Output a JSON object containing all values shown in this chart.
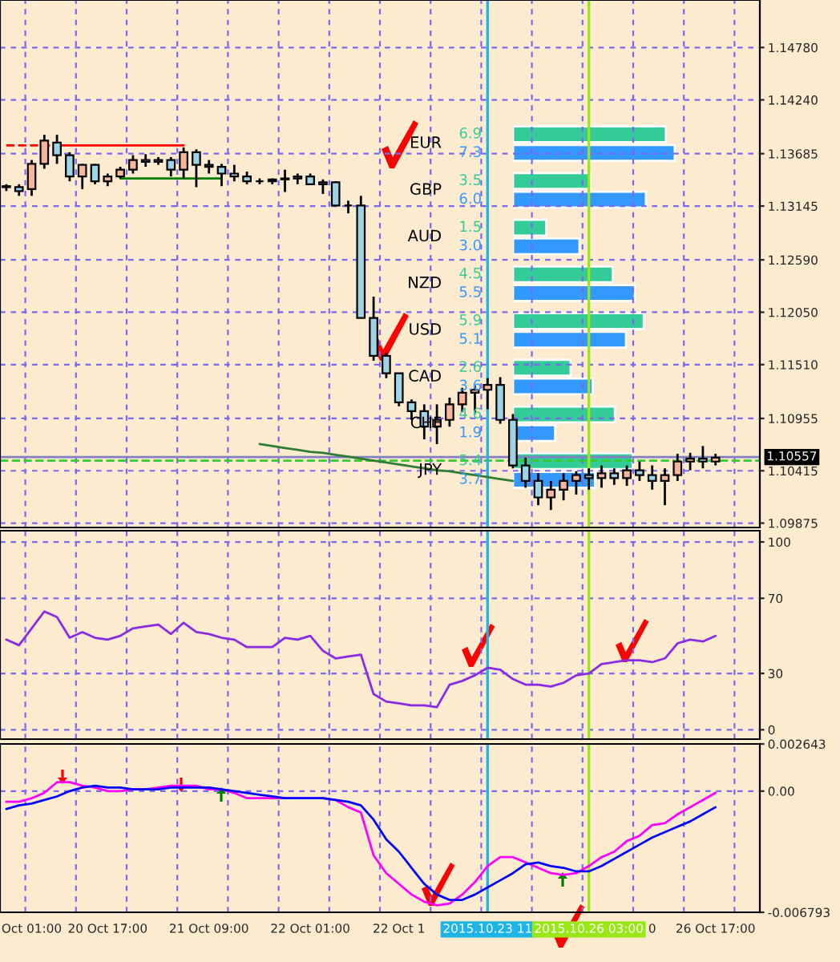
{
  "chart_data": [
    {
      "type": "candlestick",
      "categories": [
        null,
        null,
        "Oct 01:00",
        null,
        null,
        null,
        null,
        null,
        "20 Oct 17:00",
        null,
        null,
        null,
        null,
        null,
        null,
        null,
        "21 Oct 09:00",
        null,
        null,
        null,
        null,
        null,
        null,
        null,
        "22 Oct 01:00",
        null,
        null,
        null,
        null,
        null,
        null,
        "22 Oct 1",
        null,
        null,
        null,
        null,
        null,
        null,
        "2015.10.23 11",
        null,
        null,
        null,
        null,
        null,
        null,
        null,
        "2015.10.26 03:00",
        null,
        null,
        null,
        null,
        "0",
        null,
        null,
        null,
        null,
        "26 Oct 17:00",
        null,
        null,
        null
      ],
      "ohlc": [
        [
          1.1335,
          1.1337,
          1.133,
          1.1334
        ],
        [
          1.1334,
          1.1337,
          1.1325,
          1.133
        ],
        [
          1.1332,
          1.1362,
          1.1325,
          1.1358
        ],
        [
          1.1358,
          1.1388,
          1.1353,
          1.1382
        ],
        [
          1.138,
          1.1388,
          1.1358,
          1.1367
        ],
        [
          1.1367,
          1.137,
          1.134,
          1.1345
        ],
        [
          1.1345,
          1.1358,
          1.1332,
          1.1357
        ],
        [
          1.1357,
          1.1358,
          1.1337,
          1.134
        ],
        [
          1.134,
          1.1348,
          1.1335,
          1.1345
        ],
        [
          1.1345,
          1.1355,
          1.1343,
          1.1352
        ],
        [
          1.1352,
          1.1367,
          1.1348,
          1.1362
        ],
        [
          1.1362,
          1.1368,
          1.1355,
          1.136
        ],
        [
          1.136,
          1.1365,
          1.1357,
          1.1362
        ],
        [
          1.1362,
          1.1365,
          1.1345,
          1.1352
        ],
        [
          1.1352,
          1.1375,
          1.1343,
          1.137
        ],
        [
          1.137,
          1.1373,
          1.1334,
          1.1357
        ],
        [
          1.1357,
          1.1362,
          1.1348,
          1.1355
        ],
        [
          1.1355,
          1.1358,
          1.1335,
          1.1348
        ],
        [
          1.1348,
          1.1357,
          1.134,
          1.1345
        ],
        [
          1.1345,
          1.135,
          1.1337,
          1.134
        ],
        [
          1.134,
          1.1343,
          1.1337,
          1.134
        ],
        [
          1.134,
          1.1343,
          1.1337,
          1.1342
        ],
        [
          1.1342,
          1.1352,
          1.1329,
          1.1343
        ],
        [
          1.1343,
          1.1348,
          1.1337,
          1.1345
        ],
        [
          1.1345,
          1.1348,
          1.1337,
          1.1337
        ],
        [
          1.1337,
          1.1342,
          1.1327,
          1.1339
        ],
        [
          1.1339,
          1.134,
          1.1314,
          1.1315
        ],
        [
          1.1315,
          1.132,
          1.1307,
          1.1315
        ],
        [
          1.1315,
          1.1325,
          1.1199,
          1.1199
        ],
        [
          1.1199,
          1.1221,
          1.1155,
          1.116
        ],
        [
          1.116,
          1.1163,
          1.1137,
          1.1142
        ],
        [
          1.1142,
          1.1142,
          1.1108,
          1.1112
        ],
        [
          1.1112,
          1.1115,
          1.1094,
          1.1103
        ],
        [
          1.1103,
          1.111,
          1.1074,
          1.1087
        ],
        [
          1.1087,
          1.111,
          1.1069,
          1.1094
        ],
        [
          1.1094,
          1.1117,
          1.1087,
          1.111
        ],
        [
          1.111,
          1.1127,
          1.1102,
          1.1122
        ],
        [
          1.1122,
          1.113,
          1.11,
          1.1125
        ],
        [
          1.1125,
          1.1137,
          1.1105,
          1.113
        ],
        [
          1.113,
          1.1138,
          1.109,
          1.1094
        ],
        [
          1.1094,
          1.11,
          1.1044,
          1.1047
        ],
        [
          1.1047,
          1.1055,
          1.1024,
          1.1031
        ],
        [
          1.1031,
          1.1039,
          1.1006,
          1.1014
        ],
        [
          1.1014,
          1.1031,
          1.1001,
          1.1022
        ],
        [
          1.1022,
          1.1039,
          1.1011,
          1.1031
        ],
        [
          1.1031,
          1.1041,
          1.1017,
          1.1037
        ],
        [
          1.1037,
          1.1044,
          1.1022,
          1.1034
        ],
        [
          1.1034,
          1.1047,
          1.1024,
          1.1039
        ],
        [
          1.1039,
          1.1044,
          1.1027,
          1.1034
        ],
        [
          1.1034,
          1.1047,
          1.1026,
          1.1042
        ],
        [
          1.1042,
          1.1051,
          1.1031,
          1.1037
        ],
        [
          1.1037,
          1.1047,
          1.1022,
          1.1031
        ],
        [
          1.1031,
          1.1044,
          1.1006,
          1.1037
        ],
        [
          1.1037,
          1.1059,
          1.1031,
          1.1051
        ],
        [
          1.1051,
          1.106,
          1.1042,
          1.1054
        ],
        [
          1.1054,
          1.1067,
          1.1044,
          1.1051
        ],
        [
          1.1051,
          1.1059,
          1.1047,
          1.1055
        ],
        null,
        null,
        null
      ],
      "series": [
        {
          "type": "line",
          "color": "#ff0000",
          "line_style": "dashed",
          "values": [
            1.1377,
            1.1377,
            1.1377,
            1.1377,
            1.1377,
            null,
            null,
            null,
            null,
            null,
            null,
            null,
            null,
            null,
            null,
            null,
            null,
            null,
            null,
            null,
            null,
            null,
            null,
            null,
            null,
            null,
            null,
            null,
            null,
            null,
            null,
            null,
            null,
            null,
            null,
            null,
            null,
            null,
            null,
            null,
            null,
            null,
            null,
            null,
            null,
            null,
            null,
            null,
            null,
            null,
            null,
            null,
            null,
            null,
            null,
            null,
            null,
            null,
            null,
            null
          ]
        },
        {
          "type": "line",
          "color": "#ff0000",
          "line_style": "solid",
          "values": [
            null,
            null,
            null,
            null,
            1.1377,
            1.1377,
            1.1377,
            1.1377,
            1.1377,
            1.1377,
            1.1377,
            1.1377,
            1.1377,
            1.1377,
            1.1377,
            null,
            null,
            null,
            null,
            null,
            null,
            null,
            null,
            null,
            null,
            null,
            null,
            null,
            null,
            null,
            null,
            null,
            null,
            null,
            null,
            null,
            null,
            null,
            null,
            null,
            null,
            null,
            null,
            null,
            null,
            null,
            null,
            null,
            null,
            null,
            null,
            null,
            null,
            null,
            null,
            null,
            null,
            null,
            null,
            null
          ]
        },
        {
          "type": "line",
          "color": "#008000",
          "line_style": "solid",
          "values": [
            null,
            null,
            null,
            null,
            null,
            null,
            null,
            null,
            null,
            1.1343,
            1.1343,
            1.1343,
            1.1343,
            1.1343,
            1.1343,
            1.1343,
            1.1343,
            1.1343,
            null,
            null,
            null,
            null,
            null,
            null,
            null,
            null,
            null,
            null,
            null,
            null,
            null,
            null,
            null,
            null,
            null,
            null,
            null,
            null,
            null,
            null,
            null,
            null,
            null,
            null,
            null,
            null,
            null,
            null,
            null,
            null,
            null,
            null,
            null,
            null,
            null,
            null,
            null,
            null,
            null,
            null
          ]
        },
        {
          "type": "line",
          "color": "#2e7d32",
          "line_style": "solid",
          "values": [
            null,
            null,
            null,
            null,
            null,
            null,
            null,
            null,
            null,
            null,
            null,
            null,
            null,
            null,
            null,
            null,
            null,
            null,
            null,
            null,
            1.1069,
            1.1067,
            1.1065,
            1.1063,
            1.1061,
            1.106,
            1.1058,
            1.1056,
            1.1054,
            1.1052,
            1.105,
            1.1048,
            1.1046,
            1.1044,
            1.1042,
            1.1041,
            1.1039,
            1.1037,
            1.1035,
            1.1033,
            1.1031,
            null,
            null,
            null,
            null,
            null,
            null,
            null,
            null,
            null,
            null,
            null,
            null,
            null,
            null,
            null,
            null,
            null,
            null,
            null
          ]
        }
      ],
      "ylim": [
        1.0983,
        1.1527
      ],
      "yticks": [
        1.09875,
        1.10415,
        1.10955,
        {
          "value": 1.1151,
          "label": "1.11510"
        },
        {
          "value": 1.1205,
          "label": "1.12050"
        },
        {
          "value": 1.1259,
          "label": "1.12590"
        },
        1.13145,
        1.13685,
        {
          "value": 1.1424,
          "label": "1.14240"
        },
        {
          "value": 1.1478,
          "label": "1.14780"
        }
      ],
      "grid": true,
      "tick_labels": "y",
      "ref_lines": [
        {
          "axis": "y",
          "value": 1.10557,
          "label": "1.10557",
          "color": "#8080c0",
          "line_style": "solid"
        },
        {
          "axis": "y",
          "value": 1.1052,
          "color": "#33cc33",
          "line_style": "dashed"
        },
        {
          "axis": "x",
          "value": "2015.10.23 11",
          "color": "#1eb4e6"
        },
        {
          "axis": "x",
          "value": "2015.10.26 03:00",
          "color": "#99e619"
        }
      ]
    },
    {
      "type": "bar",
      "orientation": "horizontal",
      "categories": [
        "EUR",
        "GBP",
        "AUD",
        "NZD",
        "USD",
        "CAD",
        "CHF",
        "JPY"
      ],
      "series": [
        {
          "color": "#33cc99",
          "values": [
            6.9,
            3.5,
            1.5,
            4.5,
            5.9,
            2.6,
            4.6,
            5.4
          ],
          "value_labels": [
            "6.9",
            "3.5",
            "1.5",
            "4.5",
            "5.9",
            "2.6",
            "4.6",
            "5.4"
          ]
        },
        {
          "color": "#3399ff",
          "values": [
            7.3,
            6.0,
            3.0,
            5.5,
            5.1,
            3.6,
            1.9,
            3.7
          ],
          "value_labels": [
            "7.3",
            "6.0",
            "3.0",
            "5.5",
            "5.1",
            "3.6",
            "1.9",
            "3.7"
          ]
        }
      ]
    },
    {
      "type": "line",
      "categories": [
        null,
        null,
        "Oct 01:00",
        null,
        null,
        null,
        null,
        null,
        "20 Oct 17:00",
        null,
        null,
        null,
        null,
        null,
        null,
        null,
        "21 Oct 09:00",
        null,
        null,
        null,
        null,
        null,
        null,
        null,
        "22 Oct 01:00",
        null,
        null,
        null,
        null,
        null,
        null,
        "22 Oct 1",
        null,
        null,
        null,
        null,
        null,
        null,
        "2015.10.23 11",
        null,
        null,
        null,
        null,
        null,
        null,
        null,
        "2015.10.26 03:00",
        null,
        null,
        null,
        null,
        "0",
        null,
        null,
        null,
        null,
        "26 Oct 17:00",
        null,
        null,
        null
      ],
      "series": [
        {
          "color": "#8a2be2",
          "values": [
            48,
            45,
            54,
            63,
            60,
            49,
            52,
            49,
            48,
            50,
            54,
            55,
            56,
            51,
            57,
            52,
            51,
            49,
            48,
            44,
            44,
            44,
            49,
            48,
            50,
            42,
            38,
            39,
            40,
            19,
            15,
            14,
            13,
            13,
            12,
            24,
            26,
            29,
            33,
            32,
            27,
            24,
            24,
            23,
            25,
            29,
            30,
            35,
            36,
            37,
            37,
            36,
            38,
            46,
            48,
            47,
            50,
            null,
            null,
            null
          ]
        }
      ],
      "ylim": [
        -5,
        106
      ],
      "yticks": [
        0,
        30,
        70,
        100
      ],
      "grid": true,
      "tick_labels": "y",
      "ref_lines": [
        {
          "axis": "x",
          "value": "2015.10.23 11",
          "color": "#1eb4e6"
        },
        {
          "axis": "x",
          "value": "2015.10.26 03:00",
          "color": "#99e619"
        }
      ]
    },
    {
      "type": "line",
      "categories": [
        null,
        null,
        "Oct 01:00",
        null,
        null,
        null,
        null,
        null,
        "20 Oct 17:00",
        null,
        null,
        null,
        null,
        null,
        null,
        null,
        "21 Oct 09:00",
        null,
        null,
        null,
        null,
        null,
        null,
        null,
        "22 Oct 01:00",
        null,
        null,
        null,
        null,
        null,
        null,
        "22 Oct 1",
        null,
        null,
        null,
        null,
        null,
        null,
        "2015.10.23 11",
        null,
        null,
        null,
        null,
        null,
        null,
        null,
        "2015.10.26 03:00",
        null,
        null,
        null,
        null,
        "0",
        null,
        null,
        null,
        null,
        "26 Oct 17:00",
        null,
        null,
        null
      ],
      "series": [
        {
          "color": "#ff00ff",
          "values": [
            -0.0006,
            -0.0006,
            -0.0004,
            -0.0001,
            0.0005,
            0.0005,
            0.0003,
            0.0002,
            0,
            0,
            0.0001,
            0.0001,
            0.0002,
            0.0003,
            0.0003,
            0.0003,
            0.0001,
            0.0001,
            -0.0001,
            -0.0004,
            -0.0004,
            -0.0004,
            -0.0004,
            -0.0004,
            -0.0004,
            -0.0004,
            -0.0005,
            -0.0009,
            -0.0012,
            -0.0036,
            -0.0046,
            -0.0052,
            -0.0058,
            -0.0062,
            -0.0064,
            -0.0063,
            -0.0058,
            -0.0051,
            -0.0042,
            -0.0037,
            -0.0037,
            -0.004,
            -0.0043,
            -0.0046,
            -0.0047,
            -0.0046,
            -0.0042,
            -0.0037,
            -0.0034,
            -0.0028,
            -0.0025,
            -0.0019,
            -0.0018,
            -0.0013,
            -0.0009,
            -0.0005,
            -0.0001,
            null,
            null,
            null
          ]
        },
        {
          "color": "#0000ff",
          "values": [
            -0.001,
            -0.0008,
            -0.0007,
            -0.0005,
            -0.0003,
            0,
            0.0002,
            0.0003,
            0.0002,
            0.0002,
            0.0001,
            0.0001,
            0.0001,
            0.0002,
            0.0002,
            0.0002,
            0.0002,
            0.0001,
            0,
            -0.0001,
            -0.0002,
            -0.0003,
            -0.0004,
            -0.0004,
            -0.0004,
            -0.0004,
            -0.0005,
            -0.0006,
            -0.0008,
            -0.0016,
            -0.0027,
            -0.0034,
            -0.0043,
            -0.0052,
            -0.0058,
            -0.0061,
            -0.0061,
            -0.0058,
            -0.0054,
            -0.005,
            -0.0046,
            -0.0041,
            -0.004,
            -0.0042,
            -0.0043,
            -0.0045,
            -0.0045,
            -0.0042,
            -0.0038,
            -0.0034,
            -0.003,
            -0.0026,
            -0.0023,
            -0.002,
            -0.0017,
            -0.0013,
            -0.0009,
            null,
            null,
            null
          ]
        }
      ],
      "ylim": [
        -0.006793,
        0.002643
      ],
      "yticks": [
        {
          "value": 0.002643,
          "label": "0.002643"
        },
        {
          "value": 0,
          "label": "0.00"
        },
        {
          "value": -0.006793,
          "label": "-0.006793"
        }
      ],
      "grid": true,
      "ref_lines": [
        {
          "axis": "x",
          "value": "2015.10.23 11",
          "color": "#1eb4e6"
        },
        {
          "axis": "x",
          "value": "2015.10.26 03:00",
          "color": "#99e619"
        }
      ]
    }
  ]
}
